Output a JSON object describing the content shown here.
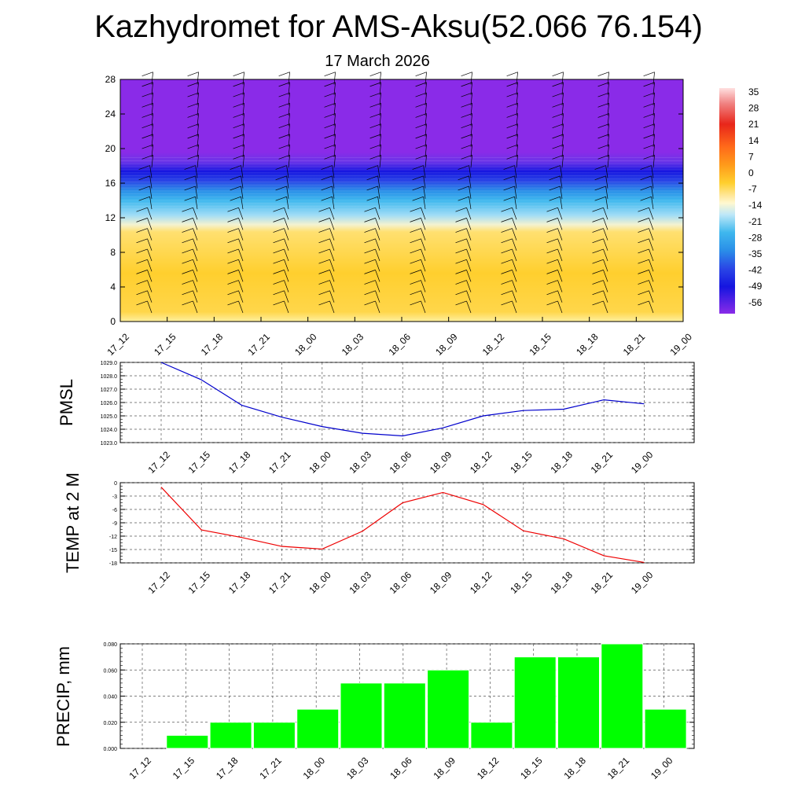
{
  "title": "Kazhydromet for AMS-Aksu(52.066 76.154)",
  "subtitle": "17 March 2026",
  "time_labels": [
    "17_12",
    "17_15",
    "17_18",
    "17_21",
    "18_00",
    "18_03",
    "18_06",
    "18_09",
    "18_12",
    "18_15",
    "18_18",
    "18_21",
    "19_00"
  ],
  "colorbar": {
    "labels": [
      "35",
      "28",
      "21",
      "14",
      "7",
      "0",
      "-7",
      "-14",
      "-21",
      "-28",
      "-35",
      "-42",
      "-49",
      "-56"
    ],
    "colors": {
      "warm_top": "#ffd0d0",
      "red": "#e8261a",
      "orange": "#ff9a1a",
      "yellow": "#ffe240",
      "pale": "#fff4b0",
      "cyan": "#7fd4f4",
      "blue_mid": "#2a8ee8",
      "blue_deep": "#1515e0",
      "purple": "#8a2be8"
    }
  },
  "chart_data": [
    {
      "type": "heatmap",
      "title": "",
      "xlabel": "",
      "ylabel": "",
      "x": [
        "17_12",
        "17_15",
        "17_18",
        "17_21",
        "18_00",
        "18_03",
        "18_06",
        "18_09",
        "18_12",
        "18_15",
        "18_18",
        "18_21",
        "19_00"
      ],
      "y_ticks": [
        "0",
        "4",
        "8",
        "12",
        "16",
        "20",
        "24",
        "28"
      ],
      "ylim": [
        0,
        28
      ],
      "bands": [
        {
          "from": 0,
          "to": 11,
          "value": -7,
          "color": "#ffd233"
        },
        {
          "from": 11,
          "to": 13,
          "value": -21,
          "color": "#9fdcf6"
        },
        {
          "from": 13,
          "to": 15.5,
          "value": -35,
          "color": "#2a8ee8"
        },
        {
          "from": 15.5,
          "to": 18,
          "value": -56,
          "color": "#1a1ae0"
        },
        {
          "from": 18,
          "to": 28,
          "value": -60,
          "color": "#8a2be8"
        }
      ],
      "overlay": "wind barbs"
    },
    {
      "type": "line",
      "ylabel": "PMSL",
      "x": [
        "17_12",
        "17_15",
        "17_18",
        "17_21",
        "18_00",
        "18_03",
        "18_06",
        "18_09",
        "18_12",
        "18_15",
        "18_18",
        "18_21",
        "19_00"
      ],
      "y_ticks": [
        "1023.0",
        "1024.0",
        "1025.0",
        "1026.0",
        "1027.0",
        "1028.0",
        "1029.0"
      ],
      "series": [
        {
          "values": [
            1029.0,
            1027.7,
            1025.8,
            1024.9,
            1024.2,
            1023.7,
            1023.5,
            1024.1,
            1025.0,
            1025.4,
            1025.5,
            1026.2,
            1025.9
          ],
          "color": "#0000cc"
        }
      ],
      "ylim": [
        1023.0,
        1029.0
      ],
      "grid": true
    },
    {
      "type": "line",
      "ylabel": "TEMP at 2 M",
      "x": [
        "17_12",
        "17_15",
        "17_18",
        "17_21",
        "18_00",
        "18_03",
        "18_06",
        "18_09",
        "18_12",
        "18_15",
        "18_18",
        "18_21",
        "19_00"
      ],
      "y_ticks": [
        "0",
        "-3",
        "-6",
        "-9",
        "-12",
        "-15",
        "-18"
      ],
      "series": [
        {
          "values": [
            -1.0,
            -10.6,
            -12.3,
            -14.3,
            -14.9,
            -10.9,
            -4.5,
            -2.2,
            -4.9,
            -10.8,
            -12.6,
            -16.4,
            -17.9
          ],
          "color": "#ee0000"
        }
      ],
      "ylim": [
        -18,
        0
      ],
      "grid": true
    },
    {
      "type": "bar",
      "ylabel": "PRECIP, mm",
      "categories": [
        "17_12",
        "17_15",
        "17_18",
        "17_21",
        "18_00",
        "18_03",
        "18_06",
        "18_09",
        "18_12",
        "18_15",
        "18_18",
        "18_21",
        "19_00"
      ],
      "y_ticks": [
        "0.000",
        "0.020",
        "0.040",
        "0.060",
        "0.080"
      ],
      "values": [
        0.0,
        0.01,
        0.02,
        0.02,
        0.03,
        0.05,
        0.05,
        0.06,
        0.02,
        0.07,
        0.07,
        0.08,
        0.03
      ],
      "color": "#00ff00",
      "ylim": [
        0,
        0.08
      ],
      "grid": true
    }
  ]
}
